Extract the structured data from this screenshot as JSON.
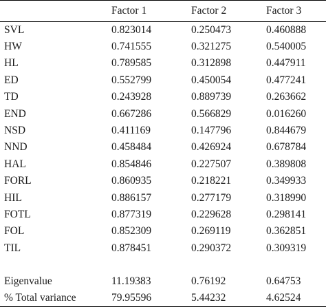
{
  "header": {
    "corner": "",
    "columns": [
      "Factor 1",
      "Factor 2",
      "Factor 3"
    ]
  },
  "rows": [
    {
      "label": "SVL",
      "values": [
        "0.823014",
        "0.250473",
        "0.460888"
      ]
    },
    {
      "label": "HW",
      "values": [
        "0.741555",
        "0.321275",
        "0.540005"
      ]
    },
    {
      "label": "HL",
      "values": [
        "0.789585",
        "0.312898",
        "0.447911"
      ]
    },
    {
      "label": "ED",
      "values": [
        "0.552799",
        "0.450054",
        "0.477241"
      ]
    },
    {
      "label": "TD",
      "values": [
        "0.243928",
        "0.889739",
        "0.263662"
      ]
    },
    {
      "label": "END",
      "values": [
        "0.667286",
        "0.566829",
        "0.016260"
      ]
    },
    {
      "label": "NSD",
      "values": [
        "0.411169",
        "0.147796",
        "0.844679"
      ]
    },
    {
      "label": "NND",
      "values": [
        "0.458484",
        "0.426924",
        "0.678784"
      ]
    },
    {
      "label": "HAL",
      "values": [
        "0.854846",
        "0.227507",
        "0.389808"
      ]
    },
    {
      "label": "FORL",
      "values": [
        "0.860935",
        "0.218221",
        "0.349933"
      ]
    },
    {
      "label": "HIL",
      "values": [
        "0.886157",
        "0.277179",
        "0.318990"
      ]
    },
    {
      "label": "FOTL",
      "values": [
        "0.877319",
        "0.229628",
        "0.298141"
      ]
    },
    {
      "label": "FOL",
      "values": [
        "0.852309",
        "0.269119",
        "0.362851"
      ]
    },
    {
      "label": "TIL",
      "values": [
        "0.878451",
        "0.290372",
        "0.309319"
      ]
    }
  ],
  "summary": [
    {
      "label": "Eigenvalue",
      "values": [
        "11.19383",
        "0.76192",
        "0.64753"
      ]
    },
    {
      "label": "% Total variance",
      "values": [
        "79.95596",
        "5.44232",
        "4.62524"
      ]
    }
  ]
}
